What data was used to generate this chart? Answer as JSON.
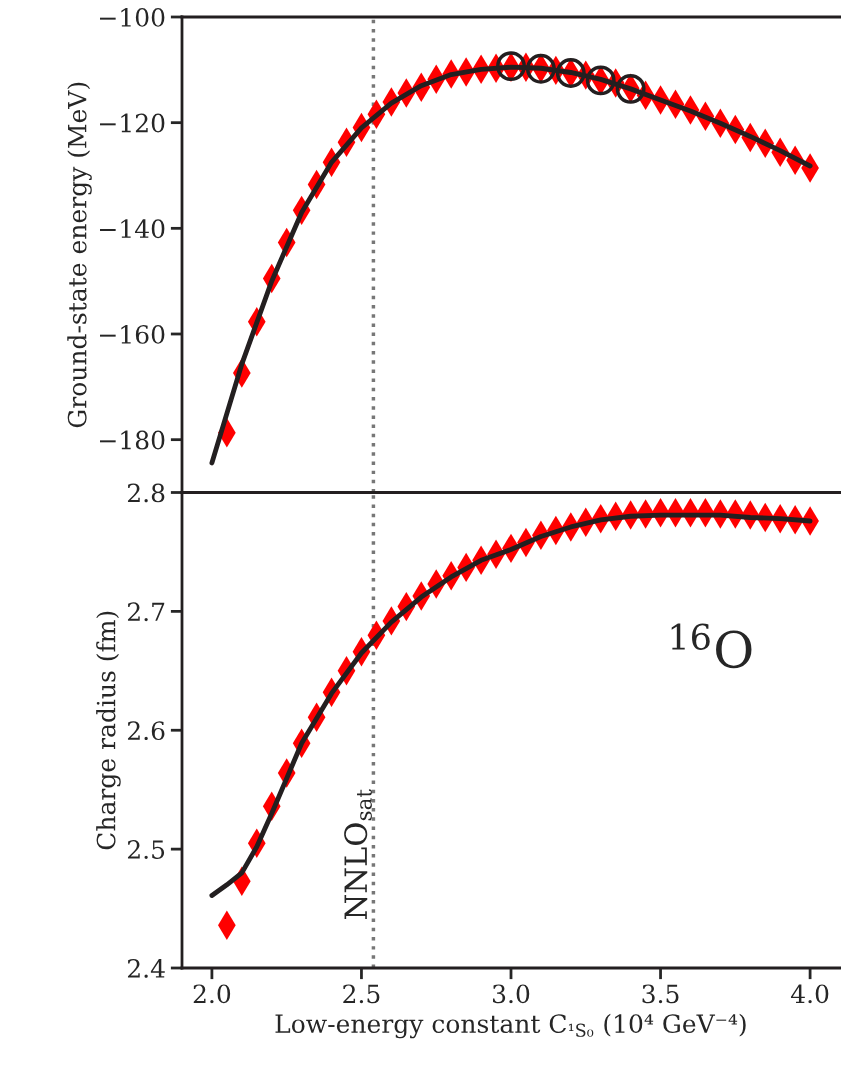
{
  "chart_data": [
    {
      "type": "scatter",
      "ylabel": "Ground-state energy (MeV)",
      "xlim": [
        1.9,
        4.1
      ],
      "ylim": [
        -190,
        -100
      ],
      "yticks": [
        {
          "value": -180,
          "label": "−180"
        },
        {
          "value": -160,
          "label": "−160"
        },
        {
          "value": -140,
          "label": "−140"
        },
        {
          "value": -120,
          "label": "−120"
        },
        {
          "value": -100,
          "label": "−100"
        }
      ],
      "tick_labels": "y",
      "grid": false,
      "legend": false,
      "ref_lines": [
        {
          "axis": "x",
          "value": 2.54,
          "color": "#777777",
          "line_style": "dotted"
        }
      ],
      "series": [
        {
          "marker": "diamond",
          "color": "#ff0000",
          "x": [
            2.05,
            2.1,
            2.15,
            2.2,
            2.25,
            2.3,
            2.35,
            2.4,
            2.45,
            2.5,
            2.55,
            2.6,
            2.65,
            2.7,
            2.75,
            2.8,
            2.85,
            2.9,
            2.95,
            3.0,
            3.05,
            3.1,
            3.15,
            3.2,
            3.25,
            3.3,
            3.35,
            3.4,
            3.45,
            3.5,
            3.55,
            3.6,
            3.65,
            3.7,
            3.75,
            3.8,
            3.85,
            3.9,
            3.95,
            4.0
          ],
          "values": [
            -178.7,
            -167.4,
            -157.7,
            -149.5,
            -142.7,
            -136.6,
            -131.7,
            -127.5,
            -123.7,
            -120.9,
            -118.4,
            -116.1,
            -114.4,
            -113.3,
            -111.8,
            -110.8,
            -110.4,
            -109.9,
            -109.7,
            -109.5,
            -109.5,
            -109.7,
            -110.1,
            -110.6,
            -111.0,
            -112.0,
            -112.5,
            -113.5,
            -114.8,
            -115.7,
            -116.5,
            -117.6,
            -118.8,
            -120.1,
            -121.3,
            -122.8,
            -123.9,
            -125.6,
            -127.1,
            -128.6
          ]
        },
        {
          "type": "line",
          "marker": "none",
          "line_style": "solid",
          "color": "#231f20",
          "x": [
            2.0,
            2.1,
            2.2,
            2.3,
            2.4,
            2.5,
            2.6,
            2.7,
            2.8,
            2.9,
            3.0,
            3.1,
            3.2,
            3.3,
            3.4,
            3.5,
            3.6,
            3.7,
            3.8,
            3.9,
            4.0
          ],
          "values": [
            -184.4,
            -165.7,
            -150.0,
            -137.0,
            -127.5,
            -121.0,
            -116.3,
            -113.0,
            -110.9,
            -109.9,
            -109.5,
            -109.7,
            -110.5,
            -111.8,
            -113.6,
            -115.7,
            -117.8,
            -120.1,
            -122.6,
            -125.3,
            -128.2
          ]
        },
        {
          "marker": "circle",
          "color": "#231f20",
          "x": [
            3.0,
            3.1,
            3.2,
            3.3,
            3.4
          ],
          "values": [
            -109.3,
            -109.8,
            -110.6,
            -112.0,
            -113.6
          ]
        }
      ]
    },
    {
      "type": "scatter",
      "ylabel": "Charge radius (fm)",
      "xlabel": "Low-energy constant C$_{¹S₀}$ (10⁴ GeV⁻⁴)",
      "xlim": [
        1.9,
        4.1
      ],
      "ylim": [
        2.4,
        2.8
      ],
      "xticks": [
        {
          "value": 2.0,
          "label": "2.0"
        },
        2.5,
        {
          "value": 3.0,
          "label": "3.0"
        },
        3.5,
        {
          "value": 4.0,
          "label": "4.0"
        }
      ],
      "yticks": [
        2.4,
        2.5,
        2.6,
        2.7,
        2.8
      ],
      "grid": false,
      "legend": false,
      "annotations": [
        "$^{16}$O"
      ],
      "ref_lines": [
        {
          "axis": "x",
          "value": 2.54,
          "label": "NNLO$_{sat}$",
          "color": "#777777",
          "line_style": "dotted"
        }
      ],
      "series": [
        {
          "marker": "diamond",
          "color": "#ff0000",
          "x": [
            2.05,
            2.1,
            2.15,
            2.2,
            2.25,
            2.3,
            2.35,
            2.4,
            2.45,
            2.5,
            2.55,
            2.6,
            2.65,
            2.7,
            2.75,
            2.8,
            2.85,
            2.9,
            2.95,
            3.0,
            3.05,
            3.1,
            3.15,
            3.2,
            3.25,
            3.3,
            3.35,
            3.4,
            3.45,
            3.5,
            3.55,
            3.6,
            3.65,
            3.7,
            3.75,
            3.8,
            3.85,
            3.9,
            3.95,
            4.0
          ],
          "values": [
            2.436,
            2.473,
            2.505,
            2.536,
            2.564,
            2.589,
            2.611,
            2.632,
            2.65,
            2.666,
            2.68,
            2.692,
            2.704,
            2.713,
            2.723,
            2.73,
            2.737,
            2.743,
            2.748,
            2.753,
            2.758,
            2.764,
            2.768,
            2.771,
            2.775,
            2.778,
            2.78,
            2.781,
            2.782,
            2.783,
            2.783,
            2.783,
            2.783,
            2.782,
            2.782,
            2.781,
            2.779,
            2.778,
            2.777,
            2.776
          ]
        },
        {
          "type": "line",
          "marker": "none",
          "line_style": "solid",
          "color": "#231f20",
          "x": [
            2.0,
            2.05,
            2.1,
            2.15,
            2.2,
            2.3,
            2.4,
            2.5,
            2.6,
            2.7,
            2.8,
            2.9,
            3.0,
            3.1,
            3.2,
            3.3,
            3.4,
            3.5,
            3.6,
            3.7,
            3.8,
            3.9,
            4.0
          ],
          "values": [
            2.461,
            2.47,
            2.48,
            2.502,
            2.53,
            2.589,
            2.631,
            2.665,
            2.691,
            2.712,
            2.729,
            2.743,
            2.752,
            2.763,
            2.771,
            2.777,
            2.78,
            2.781,
            2.781,
            2.781,
            2.779,
            2.778,
            2.776
          ]
        }
      ]
    }
  ]
}
